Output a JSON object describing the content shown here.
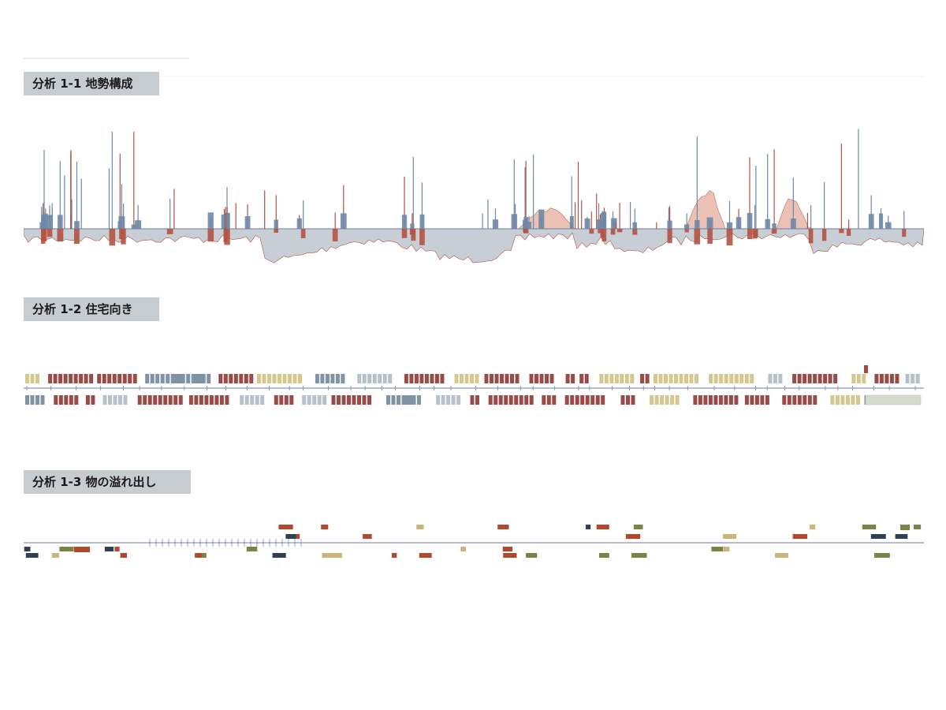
{
  "sections": [
    {
      "id": "1-1",
      "label": "分析 1-1 地勢構成"
    },
    {
      "id": "1-2",
      "label": "分析 1-2 住宅向き"
    },
    {
      "id": "1-3",
      "label": "分析 1-3 物の溢れ出し"
    }
  ],
  "colors": {
    "red": "#b45343",
    "blue": "#6e88a6",
    "grey_fill": "#c7ced6",
    "pink_fill": "#e8b7a9",
    "maroon": "#9a4b48",
    "slate": "#7f92a6",
    "light_slate": "#b7c1cc",
    "khaki": "#d4c88f",
    "sage": "#d5dccc",
    "axis": "#6b7ea6",
    "olive": "#7d8247",
    "orange_red": "#b5482c",
    "navy": "#2f3f55",
    "tan": "#cdb47c"
  }
}
